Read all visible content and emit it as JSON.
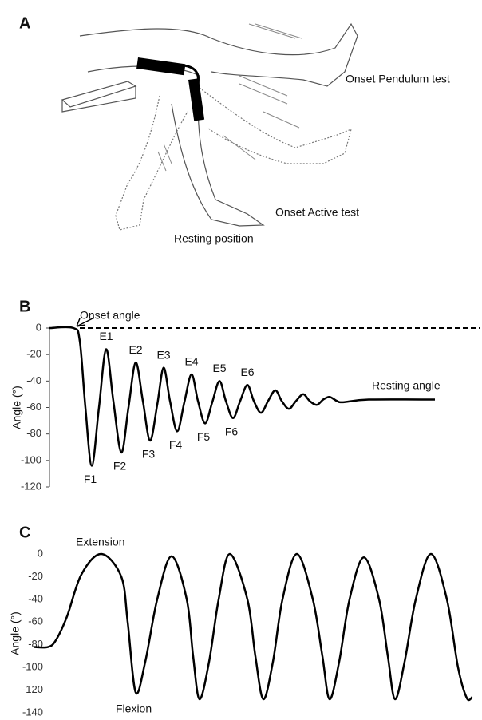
{
  "panel_a": {
    "label": "A",
    "annotations": [
      "Onset Pendulum test",
      "Onset Active test",
      "Resting position"
    ]
  },
  "chart_data": [
    {
      "type": "line",
      "label": "B",
      "y_label": "Angle (°)",
      "color": "#000000",
      "x": [
        0,
        30,
        38,
        45,
        53,
        62,
        71,
        80,
        90,
        99,
        108,
        117,
        126,
        135,
        143,
        151,
        160,
        169,
        178,
        186,
        195,
        204,
        213,
        221,
        230,
        239,
        248,
        256,
        265,
        274,
        283,
        291,
        300,
        309,
        318,
        326,
        335,
        343,
        351,
        360,
        368,
        400,
        483
      ],
      "values": [
        0,
        0,
        -10,
        -60,
        -104,
        -60,
        -16,
        -55,
        -94,
        -60,
        -26,
        -55,
        -85,
        -58,
        -30,
        -55,
        -78,
        -56,
        -35,
        -55,
        -72,
        -56,
        -40,
        -55,
        -68,
        -55,
        -43,
        -55,
        -64,
        -55,
        -47,
        -55,
        -61,
        -55,
        -50,
        -55,
        -58,
        -54,
        -52,
        -55,
        -56,
        -54,
        -54
      ],
      "xlim": [
        0,
        540
      ],
      "ylim": [
        -120,
        0
      ],
      "yticks": [
        0,
        -20,
        -40,
        -60,
        -80,
        -100,
        -120
      ],
      "reference_line": 0,
      "annotations": [
        "Onset angle",
        "Resting angle"
      ],
      "peak_labels": [
        "E1",
        "E2",
        "E3",
        "E4",
        "E5",
        "E6"
      ],
      "trough_labels": [
        "F1",
        "F2",
        "F3",
        "F4",
        "F5",
        "F6"
      ]
    },
    {
      "type": "line",
      "label": "C",
      "y_label": "Angle (°)",
      "color": "#000000",
      "x": [
        0,
        18,
        28,
        42,
        60,
        85,
        110,
        118,
        128,
        140,
        155,
        173,
        192,
        200,
        208,
        220,
        232,
        246,
        268,
        278,
        288,
        300,
        312,
        330,
        350,
        362,
        371,
        383,
        396,
        414,
        433,
        444,
        453,
        465,
        479,
        498,
        518,
        532,
        543,
        550
      ],
      "values": [
        -82,
        -82,
        -76,
        -55,
        -18,
        0,
        -20,
        -60,
        -122,
        -95,
        -40,
        -2,
        -40,
        -90,
        -128,
        -95,
        -40,
        0,
        -40,
        -90,
        -128,
        -95,
        -40,
        0,
        -40,
        -90,
        -128,
        -95,
        -40,
        -3,
        -40,
        -90,
        -128,
        -95,
        -40,
        0,
        -40,
        -100,
        -127,
        -126
      ],
      "xlim": [
        0,
        560
      ],
      "ylim": [
        -140,
        0
      ],
      "yticks": [
        0,
        -20,
        -40,
        -60,
        -80,
        -100,
        -120,
        -140
      ],
      "annotations": [
        "Extension",
        "Flexion"
      ]
    }
  ]
}
